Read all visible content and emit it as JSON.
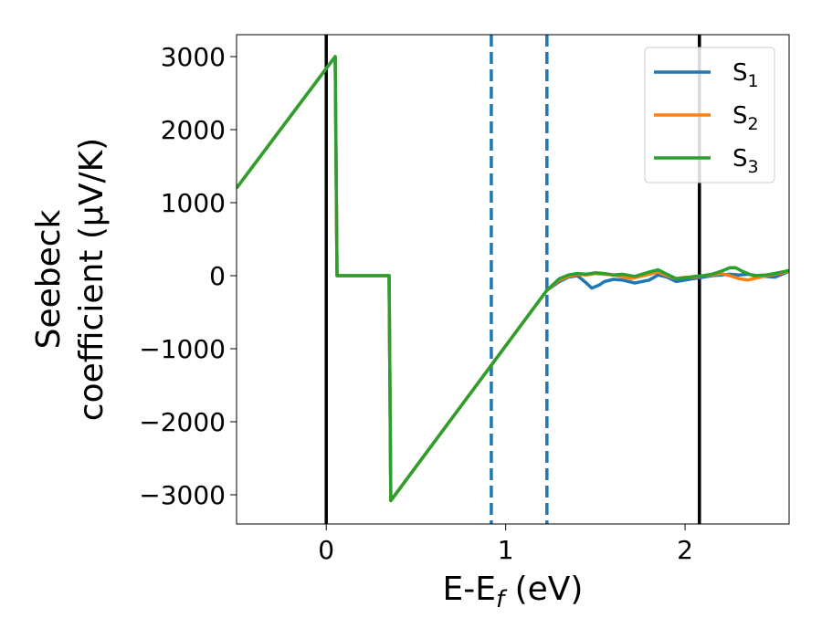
{
  "chart_data": {
    "type": "line",
    "title": "",
    "xlabel": "E-E",
    "xlabel_sub": "f",
    "xlabel_unit": " (eV)",
    "ylabel_line1": "Seebeck",
    "ylabel_line2": "coefficient  (μV/K)",
    "xlim": [
      -0.5,
      2.58
    ],
    "ylim": [
      -3400,
      3300
    ],
    "xticks": [
      0,
      1,
      2
    ],
    "xtick_labels": [
      "0",
      "1",
      "2"
    ],
    "yticks": [
      -3000,
      -2000,
      -1000,
      0,
      1000,
      2000,
      3000
    ],
    "ytick_labels": [
      "−3000",
      "−2000",
      "−1000",
      "0",
      "1000",
      "2000",
      "3000"
    ],
    "grid": false,
    "legend_position": "top-right",
    "vlines": [
      {
        "x": 0.0,
        "style": "solid",
        "color": "#000000"
      },
      {
        "x": 0.92,
        "style": "dashed",
        "color": "#1f77b4"
      },
      {
        "x": 1.23,
        "style": "dashed",
        "color": "#1f77b4"
      },
      {
        "x": 2.08,
        "style": "solid",
        "color": "#000000"
      }
    ],
    "series": [
      {
        "name": "S",
        "sub": "1",
        "color": "#1f77b4",
        "x": [
          -0.5,
          0.05,
          0.06,
          0.35,
          0.36,
          1.23,
          1.3,
          1.35,
          1.4,
          1.45,
          1.48,
          1.52,
          1.55,
          1.6,
          1.65,
          1.72,
          1.8,
          1.85,
          1.9,
          1.95,
          2.0,
          2.05,
          2.1,
          2.15,
          2.2,
          2.25,
          2.3,
          2.35,
          2.4,
          2.45,
          2.5,
          2.58
        ],
        "y": [
          1200,
          3000,
          0,
          0,
          -3080,
          -200,
          -80,
          -20,
          0,
          -100,
          -170,
          -130,
          -80,
          -50,
          -60,
          -100,
          -60,
          10,
          -20,
          -80,
          -60,
          -40,
          -20,
          0,
          10,
          20,
          10,
          20,
          0,
          -10,
          -20,
          60
        ]
      },
      {
        "name": "S",
        "sub": "2",
        "color": "#ff7f0e",
        "x": [
          -0.5,
          0.05,
          0.06,
          0.35,
          0.36,
          1.23,
          1.3,
          1.35,
          1.4,
          1.45,
          1.5,
          1.6,
          1.7,
          1.8,
          1.85,
          1.9,
          1.95,
          2.0,
          2.05,
          2.1,
          2.15,
          2.2,
          2.25,
          2.3,
          2.35,
          2.4,
          2.45,
          2.5,
          2.58
        ],
        "y": [
          1200,
          3000,
          0,
          0,
          -3080,
          -200,
          -60,
          -10,
          20,
          10,
          30,
          10,
          -40,
          20,
          50,
          0,
          -40,
          -20,
          -20,
          0,
          10,
          30,
          0,
          -40,
          -60,
          -30,
          0,
          20,
          60
        ]
      },
      {
        "name": "S",
        "sub": "3",
        "color": "#2ca02c",
        "x": [
          -0.5,
          0.05,
          0.06,
          0.35,
          0.36,
          1.23,
          1.3,
          1.35,
          1.4,
          1.45,
          1.5,
          1.55,
          1.6,
          1.65,
          1.72,
          1.8,
          1.85,
          1.9,
          1.95,
          2.0,
          2.05,
          2.1,
          2.15,
          2.2,
          2.25,
          2.28,
          2.32,
          2.38,
          2.45,
          2.5,
          2.58
        ],
        "y": [
          1200,
          3000,
          0,
          0,
          -3080,
          -200,
          -40,
          10,
          30,
          20,
          40,
          30,
          10,
          20,
          -10,
          50,
          80,
          20,
          -40,
          -30,
          -10,
          0,
          20,
          60,
          110,
          110,
          60,
          0,
          10,
          30,
          70
        ]
      }
    ]
  }
}
